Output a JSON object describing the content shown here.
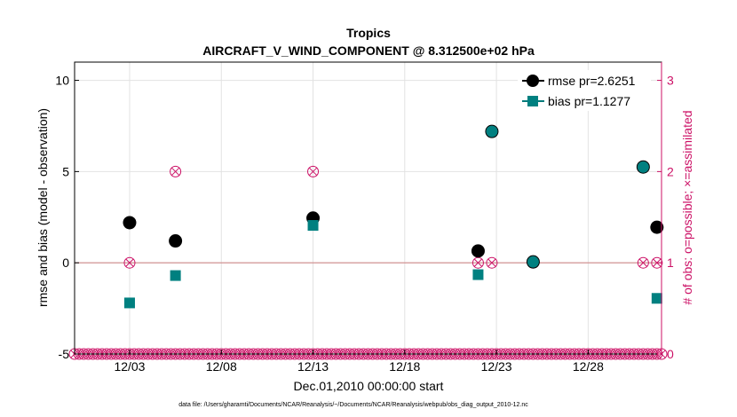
{
  "chart_data": {
    "type": "scatter",
    "title": "Tropics",
    "subtitle": "AIRCRAFT_V_WIND_COMPONENT @ 8.312500e+02 hPa",
    "xlabel": "Dec.01,2010 00:00:00 start",
    "ylabel": "rmse and bias (model - observation)",
    "y2label": "# of obs: o=possible; ×=assimilated",
    "footnote": "data file: /Users/gharamti/Documents/NCAR/Reanalysis/~/Documents/NCAR/Reanalysis/webpub/obs_diag_output_2010-12.nc",
    "xlim": [
      0.5,
      32.5
    ],
    "ylim": [
      -5,
      11
    ],
    "y2lim": [
      0,
      3.2
    ],
    "grid": true,
    "legend_position": "top-right",
    "xtick_labels": [
      {
        "x": 3.5,
        "label": "12/03"
      },
      {
        "x": 8.5,
        "label": "12/08"
      },
      {
        "x": 13.5,
        "label": "12/13"
      },
      {
        "x": 18.5,
        "label": "12/18"
      },
      {
        "x": 23.5,
        "label": "12/23"
      },
      {
        "x": 28.5,
        "label": "12/28"
      }
    ],
    "ytick_labels": [
      {
        "y": -5,
        "label": "-5"
      },
      {
        "y": 0,
        "label": "0"
      },
      {
        "y": 5,
        "label": "5"
      },
      {
        "y": 10,
        "label": "10"
      }
    ],
    "y2tick_labels": [
      {
        "y": 0,
        "label": "0"
      },
      {
        "y": 1,
        "label": "1"
      },
      {
        "y": 2,
        "label": "2"
      },
      {
        "y": 3,
        "label": "3"
      }
    ],
    "series": [
      {
        "name": "rmse pr=2.6251",
        "color": "#000000",
        "marker": "circle",
        "points": [
          [
            3.5,
            2.2
          ],
          [
            6.0,
            1.2
          ],
          [
            13.5,
            2.45
          ],
          [
            22.5,
            0.65
          ],
          [
            23.25,
            7.2
          ],
          [
            25.5,
            0.05
          ],
          [
            31.5,
            5.25
          ],
          [
            32.25,
            1.95
          ]
        ]
      },
      {
        "name": "bias pr=1.1277",
        "color": "#008080",
        "marker": "square",
        "points": [
          [
            3.5,
            -2.2
          ],
          [
            6.0,
            -0.7
          ],
          [
            13.5,
            2.05
          ],
          [
            22.5,
            -0.65
          ],
          [
            23.25,
            7.2
          ],
          [
            25.5,
            0.05
          ],
          [
            31.5,
            5.25
          ],
          [
            32.25,
            -1.95
          ]
        ]
      }
    ],
    "obs_count": {
      "color": "#cc1166",
      "x_start": 0.5,
      "x_step": 0.25,
      "nonzero": [
        [
          3.5,
          1
        ],
        [
          6.0,
          2
        ],
        [
          13.5,
          2
        ],
        [
          22.5,
          1
        ],
        [
          23.25,
          1
        ],
        [
          25.5,
          1
        ],
        [
          31.5,
          1
        ],
        [
          32.25,
          1
        ]
      ]
    }
  }
}
